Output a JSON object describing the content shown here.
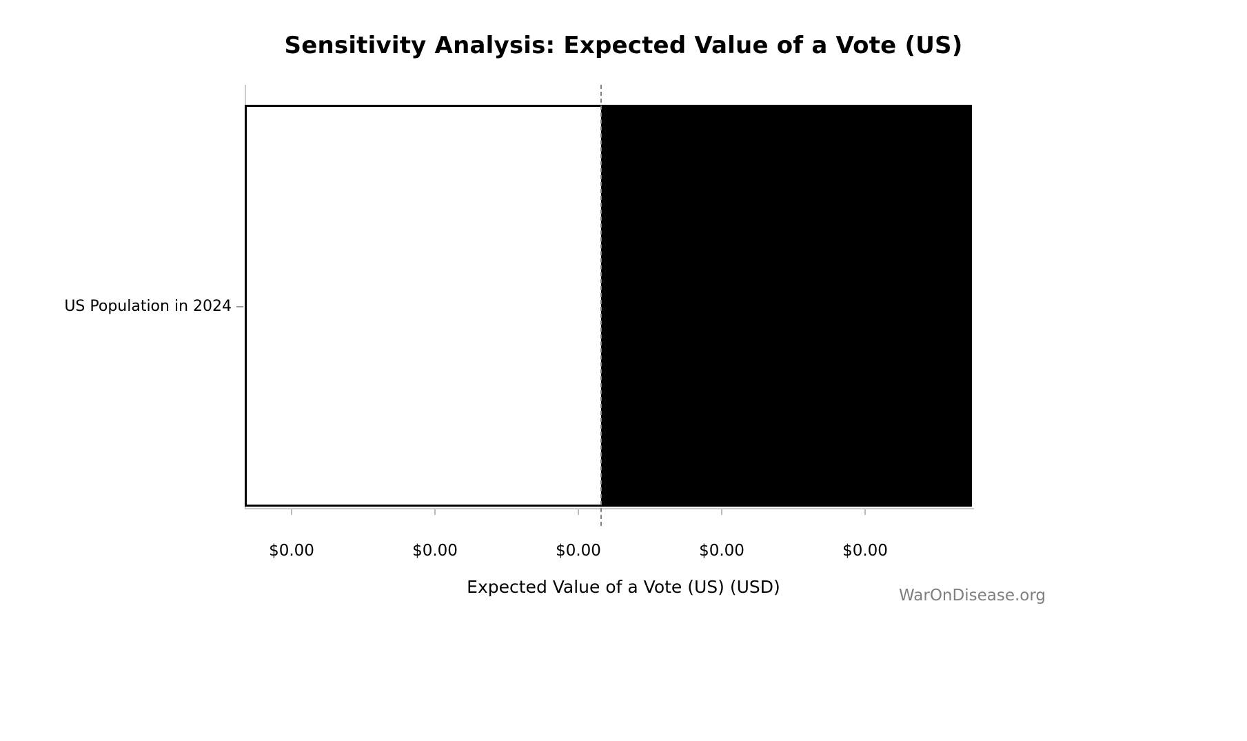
{
  "figure": {
    "watermark": "WarOnDisease.org"
  },
  "chart_data": {
    "type": "bar",
    "orientation": "horizontal",
    "title": "Sensitivity Analysis: Expected Value of a Vote (US)",
    "xlabel": "Expected Value of a Vote (US) (USD)",
    "ylabel": "",
    "categories": [
      "US Population in 2024"
    ],
    "x_tick_labels": [
      "$0.00",
      "$0.00",
      "$0.00",
      "$0.00",
      "$0.00"
    ],
    "series": [
      {
        "name": "low-side-segment",
        "color": "#ffffff",
        "extent_frac": [
          0.0,
          0.49
        ]
      },
      {
        "name": "high-side-segment",
        "color": "#000000",
        "extent_frac": [
          0.49,
          1.0
        ]
      }
    ],
    "bar_edge_color": "#000000",
    "baseline": {
      "style": "dashed",
      "color": "#7f7f7f",
      "position_frac": 0.49
    },
    "grid": false,
    "legend": false
  }
}
